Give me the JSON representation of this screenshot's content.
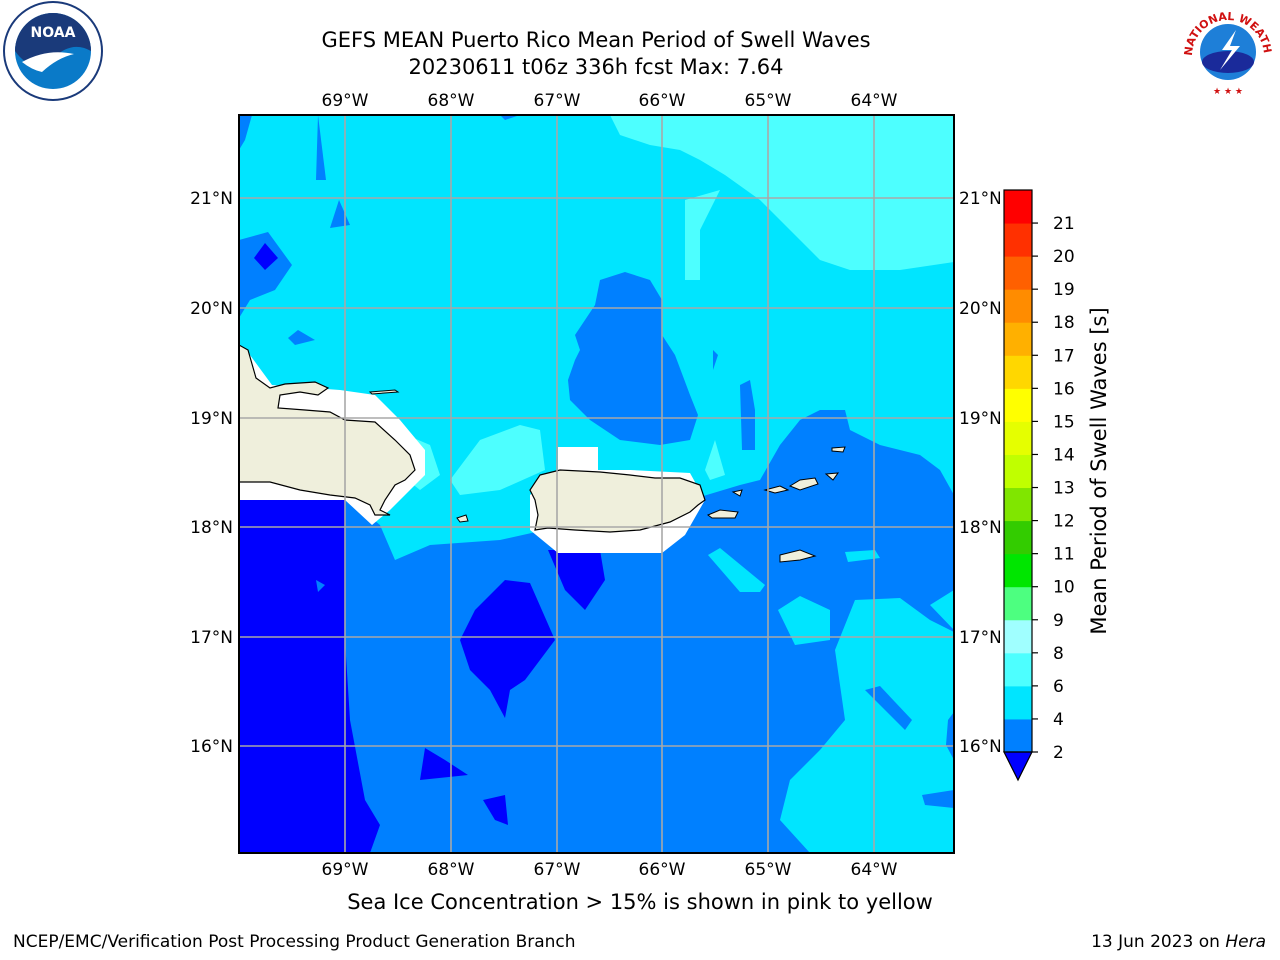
{
  "title_line1": "GEFS MEAN Puerto Rico Mean Period of Swell Waves",
  "title_line2": "20230611 t06z 336h fcst   Max: 7.64",
  "lon_labels": [
    "69°W",
    "68°W",
    "67°W",
    "66°W",
    "65°W",
    "64°W"
  ],
  "lat_labels": [
    "21°N",
    "20°N",
    "19°N",
    "18°N",
    "17°N",
    "16°N"
  ],
  "colorbar": {
    "label": "Mean Period of Swell Waves [s]",
    "ticks": [
      "2",
      "4",
      "6",
      "8",
      "9",
      "10",
      "11",
      "12",
      "13",
      "14",
      "15",
      "16",
      "17",
      "18",
      "19",
      "20",
      "21"
    ],
    "colors": [
      "#0080ff",
      "#00e5ff",
      "#4dffff",
      "#a0ffff",
      "#4dff80",
      "#00e600",
      "#33cc00",
      "#80e600",
      "#c0ff00",
      "#e5ff00",
      "#ffff00",
      "#ffd700",
      "#ffb000",
      "#ff8c00",
      "#ff6000",
      "#ff3000",
      "#ff0000"
    ],
    "under_color": "#0000ff"
  },
  "note": "Sea Ice Concentration > 15% is shown in pink to yellow",
  "footer_left": "NCEP/EMC/Verification Post Processing Product Generation Branch",
  "footer_date": "13 Jun 2023 on ",
  "footer_host": "Hera",
  "logos": {
    "noaa_text": "NOAA",
    "nws_text": "NATIONAL WEATHER SERVICE"
  }
}
